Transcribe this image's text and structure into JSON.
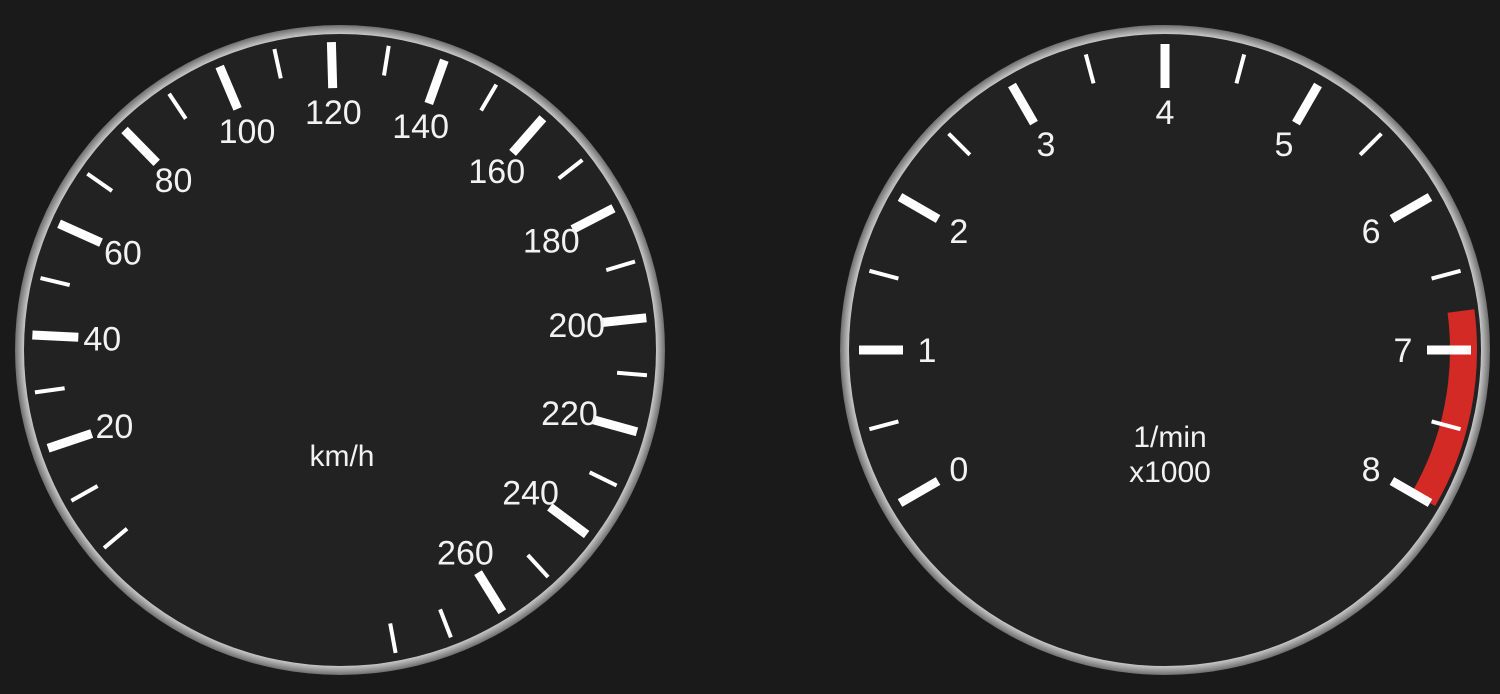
{
  "speedometer": {
    "unit": "km/h",
    "major_labels": [
      "20",
      "40",
      "60",
      "80",
      "100",
      "120",
      "140",
      "160",
      "180",
      "200",
      "220",
      "240",
      "260"
    ]
  },
  "tachometer": {
    "unit_line1": "1/min",
    "unit_line2": "x1000",
    "major_labels": [
      "0",
      "1",
      "2",
      "3",
      "4",
      "5",
      "6",
      "7",
      "8"
    ],
    "redline_from": 6.75,
    "redline_to": 8
  },
  "colors": {
    "background": "#1b1a1a",
    "dial_face": "#232222",
    "bezel": "#9a9a9a",
    "tick": "#ffffff",
    "redline": "#d42a25"
  }
}
